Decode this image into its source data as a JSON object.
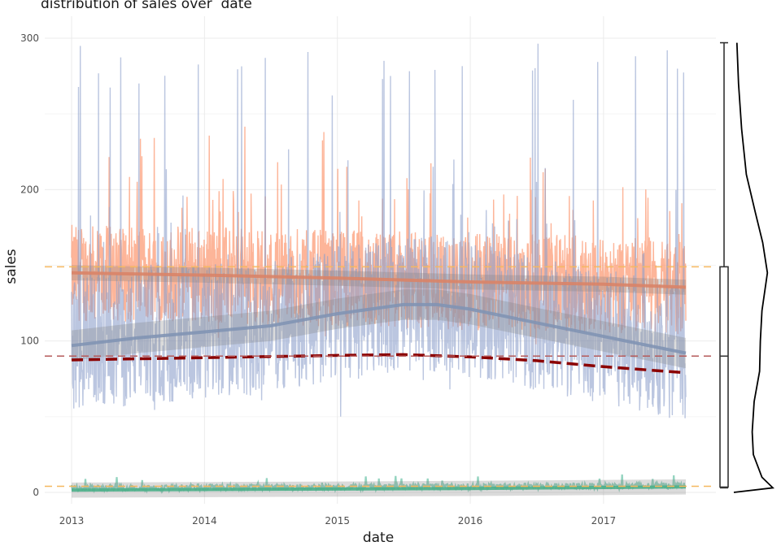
{
  "chart_data": {
    "type": "line",
    "title": "distribution of sales over  date",
    "xlabel": "date",
    "ylabel": "sales",
    "xlim": [
      "2013-01-01",
      "2017-08-15"
    ],
    "ylim": [
      0,
      300
    ],
    "x_ticks": [
      "2013",
      "2014",
      "2015",
      "2016",
      "2017"
    ],
    "y_ticks": [
      0,
      100,
      200,
      300
    ],
    "grid": true,
    "colors": {
      "series_a": "#fc8d62",
      "series_b": "#8da0cb",
      "series_c": "#66c2a5",
      "trend_a": "#d98468",
      "trend_b": "#8193b4",
      "trend_c": "#4daf8a",
      "mean_trend": "#8b0000",
      "ref_line": "#f5b75f"
    },
    "series": [
      {
        "key": "a",
        "center": 143,
        "spread": 32,
        "peaks": [
          246,
          218,
          205
        ]
      },
      {
        "key": "b",
        "center": 105,
        "spread": 45,
        "peaks": [
          297,
          292,
          291,
          290,
          280
        ]
      },
      {
        "key": "c",
        "center": 2.5,
        "spread": 2,
        "peaks": [
          12,
          11,
          10
        ]
      }
    ],
    "trend_lines": [
      {
        "key": "a",
        "points": [
          [
            "2013-01-01",
            145
          ],
          [
            "2014-01-01",
            143.5
          ],
          [
            "2015-01-01",
            141.5
          ],
          [
            "2016-01-01",
            139
          ],
          [
            "2017-01-01",
            137.5
          ],
          [
            "2017-08-15",
            135.5
          ]
        ]
      },
      {
        "key": "b",
        "points": [
          [
            "2013-01-01",
            97
          ],
          [
            "2013-07-01",
            102
          ],
          [
            "2014-01-01",
            106
          ],
          [
            "2014-07-01",
            110
          ],
          [
            "2015-01-01",
            118
          ],
          [
            "2015-07-01",
            124
          ],
          [
            "2015-10-01",
            124
          ],
          [
            "2016-01-01",
            121
          ],
          [
            "2016-07-01",
            112
          ],
          [
            "2017-01-01",
            103
          ],
          [
            "2017-08-15",
            92
          ]
        ]
      },
      {
        "key": "c",
        "points": [
          [
            "2013-01-01",
            1.5
          ],
          [
            "2015-01-01",
            2.2
          ],
          [
            "2016-01-01",
            2.6
          ],
          [
            "2017-08-15",
            3.6
          ]
        ]
      },
      {
        "key": "mean",
        "points": [
          [
            "2013-01-01",
            87.5
          ],
          [
            "2014-01-01",
            89
          ],
          [
            "2015-01-01",
            90.5
          ],
          [
            "2015-07-01",
            91
          ],
          [
            "2016-01-01",
            89.5
          ],
          [
            "2016-07-01",
            87
          ],
          [
            "2017-01-01",
            83
          ],
          [
            "2017-08-15",
            79
          ]
        ]
      }
    ],
    "reference_lines": [
      {
        "y": 149,
        "color": "#f5b75f"
      },
      {
        "y": 90,
        "color": "#b55a5a"
      },
      {
        "y": 4,
        "color": "#f5b75f"
      }
    ],
    "boxplot": {
      "min": 3,
      "q1": 3.5,
      "median": 90,
      "q3": 149,
      "max": 297
    },
    "density": [
      [
        0,
        0.0
      ],
      [
        3,
        1.0
      ],
      [
        10,
        0.72
      ],
      [
        25,
        0.5
      ],
      [
        40,
        0.47
      ],
      [
        60,
        0.52
      ],
      [
        80,
        0.66
      ],
      [
        100,
        0.68
      ],
      [
        120,
        0.72
      ],
      [
        145,
        0.86
      ],
      [
        165,
        0.74
      ],
      [
        185,
        0.55
      ],
      [
        210,
        0.32
      ],
      [
        240,
        0.2
      ],
      [
        270,
        0.12
      ],
      [
        297,
        0.08
      ]
    ]
  }
}
